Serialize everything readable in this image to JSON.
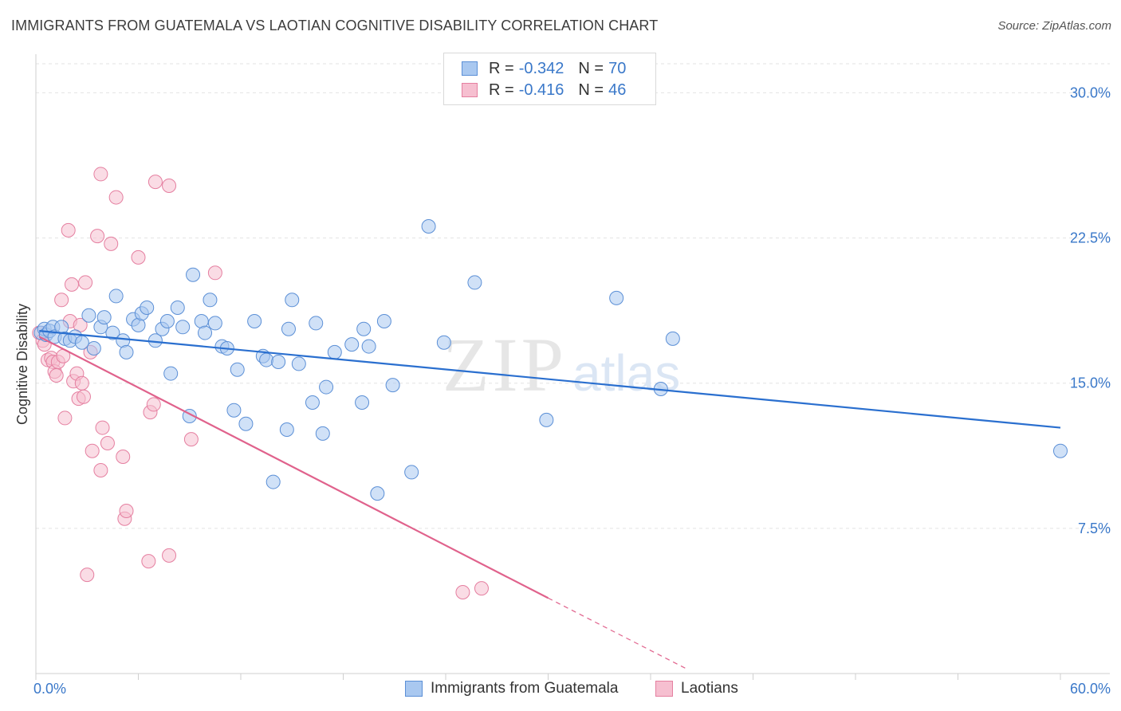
{
  "title": "IMMIGRANTS FROM GUATEMALA VS LAOTIAN COGNITIVE DISABILITY CORRELATION CHART",
  "source": "Source: ZipAtlas.com",
  "watermark": {
    "part1": "ZIP",
    "part2": "atlas"
  },
  "legend": {
    "r_label": "R =",
    "n_label": "N =",
    "items": [
      {
        "r": "-0.342",
        "n": "70",
        "color": "#a9c8f0",
        "border": "#5b8fd6"
      },
      {
        "r": "-0.416",
        "n": "46",
        "color": "#f6bfd0",
        "border": "#e57fa0"
      }
    ]
  },
  "chart_data": {
    "type": "scatter",
    "title": "IMMIGRANTS FROM GUATEMALA VS LAOTIAN COGNITIVE DISABILITY CORRELATION CHART",
    "xlabel": "",
    "ylabel": "Cognitive Disability",
    "xlim": [
      0,
      60
    ],
    "ylim": [
      0,
      31.5
    ],
    "x_tick_labels": [
      "0.0%",
      "60.0%"
    ],
    "y_ticks": [
      7.5,
      15.0,
      22.5,
      30.0
    ],
    "y_tick_labels": [
      "7.5%",
      "15.0%",
      "22.5%",
      "30.0%"
    ],
    "grid": "horizontal dashed",
    "legend_position": "top-center and bottom",
    "series": [
      {
        "name": "Immigrants from Guatemala",
        "color": "#a9c8f0",
        "stroke": "#5b8fd6",
        "trend_color": "#2a6fcf",
        "trend": {
          "x0": 0.2,
          "y0": 17.7,
          "x1": 60.0,
          "y1": 12.7
        },
        "points": [
          [
            0.3,
            17.6
          ],
          [
            0.5,
            17.8
          ],
          [
            0.6,
            17.5
          ],
          [
            0.8,
            17.7
          ],
          [
            1.0,
            17.9
          ],
          [
            1.1,
            17.4
          ],
          [
            1.5,
            17.9
          ],
          [
            1.7,
            17.3
          ],
          [
            2.0,
            17.2
          ],
          [
            2.3,
            17.4
          ],
          [
            2.7,
            17.1
          ],
          [
            3.1,
            18.5
          ],
          [
            3.4,
            16.8
          ],
          [
            3.8,
            17.9
          ],
          [
            4.0,
            18.4
          ],
          [
            4.5,
            17.6
          ],
          [
            4.7,
            19.5
          ],
          [
            5.1,
            17.2
          ],
          [
            5.3,
            16.6
          ],
          [
            5.7,
            18.3
          ],
          [
            6.0,
            18.0
          ],
          [
            6.2,
            18.6
          ],
          [
            6.5,
            18.9
          ],
          [
            7.0,
            17.2
          ],
          [
            7.4,
            17.8
          ],
          [
            7.7,
            18.2
          ],
          [
            7.9,
            15.5
          ],
          [
            8.3,
            18.9
          ],
          [
            8.6,
            17.9
          ],
          [
            9.0,
            13.3
          ],
          [
            9.2,
            20.6
          ],
          [
            9.7,
            18.2
          ],
          [
            9.9,
            17.6
          ],
          [
            10.2,
            19.3
          ],
          [
            10.5,
            18.1
          ],
          [
            10.9,
            16.9
          ],
          [
            11.2,
            16.8
          ],
          [
            11.6,
            13.6
          ],
          [
            11.8,
            15.7
          ],
          [
            12.3,
            12.9
          ],
          [
            12.8,
            18.2
          ],
          [
            13.3,
            16.4
          ],
          [
            13.5,
            16.2
          ],
          [
            13.9,
            9.9
          ],
          [
            14.2,
            16.1
          ],
          [
            14.7,
            12.6
          ],
          [
            14.8,
            17.8
          ],
          [
            15.0,
            19.3
          ],
          [
            15.4,
            16.0
          ],
          [
            16.2,
            14.0
          ],
          [
            16.4,
            18.1
          ],
          [
            16.8,
            12.4
          ],
          [
            17.0,
            14.8
          ],
          [
            17.5,
            16.6
          ],
          [
            18.5,
            17.0
          ],
          [
            19.1,
            14.0
          ],
          [
            19.2,
            17.8
          ],
          [
            19.5,
            16.9
          ],
          [
            20.0,
            9.3
          ],
          [
            20.4,
            18.2
          ],
          [
            20.9,
            14.9
          ],
          [
            22.0,
            10.4
          ],
          [
            23.0,
            23.1
          ],
          [
            23.9,
            17.1
          ],
          [
            25.7,
            20.2
          ],
          [
            29.9,
            13.1
          ],
          [
            34.0,
            19.4
          ],
          [
            36.6,
            14.7
          ],
          [
            37.3,
            17.3
          ],
          [
            60.0,
            11.5
          ]
        ]
      },
      {
        "name": "Laotians",
        "color": "#f6bfd0",
        "stroke": "#e57fa0",
        "trend_color": "#e0628c",
        "trend": {
          "x0": 0.2,
          "y0": 17.4,
          "x1": 30.0,
          "y1": 3.9
        },
        "trend_dashed_to": {
          "x": 38.2,
          "y": 0.2
        },
        "points": [
          [
            0.2,
            17.6
          ],
          [
            0.4,
            17.2
          ],
          [
            0.5,
            17.0
          ],
          [
            0.7,
            16.2
          ],
          [
            0.9,
            16.3
          ],
          [
            1.0,
            16.1
          ],
          [
            1.1,
            15.6
          ],
          [
            1.2,
            15.4
          ],
          [
            1.3,
            16.1
          ],
          [
            1.5,
            19.3
          ],
          [
            1.6,
            16.4
          ],
          [
            1.7,
            13.2
          ],
          [
            1.9,
            22.9
          ],
          [
            2.0,
            18.2
          ],
          [
            2.1,
            20.1
          ],
          [
            2.2,
            15.1
          ],
          [
            2.4,
            15.5
          ],
          [
            2.5,
            14.2
          ],
          [
            2.6,
            18.0
          ],
          [
            2.7,
            15.0
          ],
          [
            2.8,
            14.3
          ],
          [
            2.9,
            20.2
          ],
          [
            3.0,
            5.1
          ],
          [
            3.2,
            16.6
          ],
          [
            3.3,
            11.5
          ],
          [
            3.6,
            22.6
          ],
          [
            3.8,
            25.8
          ],
          [
            3.8,
            10.5
          ],
          [
            3.9,
            12.7
          ],
          [
            4.2,
            11.9
          ],
          [
            4.4,
            22.2
          ],
          [
            4.7,
            24.6
          ],
          [
            5.1,
            11.2
          ],
          [
            5.2,
            8.0
          ],
          [
            5.3,
            8.4
          ],
          [
            6.0,
            21.5
          ],
          [
            6.6,
            5.8
          ],
          [
            6.7,
            13.5
          ],
          [
            6.9,
            13.9
          ],
          [
            7.0,
            25.4
          ],
          [
            7.8,
            6.1
          ],
          [
            7.8,
            25.2
          ],
          [
            9.1,
            12.1
          ],
          [
            10.5,
            20.7
          ],
          [
            25.0,
            4.2
          ],
          [
            26.1,
            4.4
          ]
        ]
      }
    ]
  },
  "bottom_legend": [
    {
      "label": "Immigrants from Guatemala",
      "color": "#a9c8f0",
      "border": "#5b8fd6"
    },
    {
      "label": "Laotians",
      "color": "#f6bfd0",
      "border": "#e57fa0"
    }
  ]
}
